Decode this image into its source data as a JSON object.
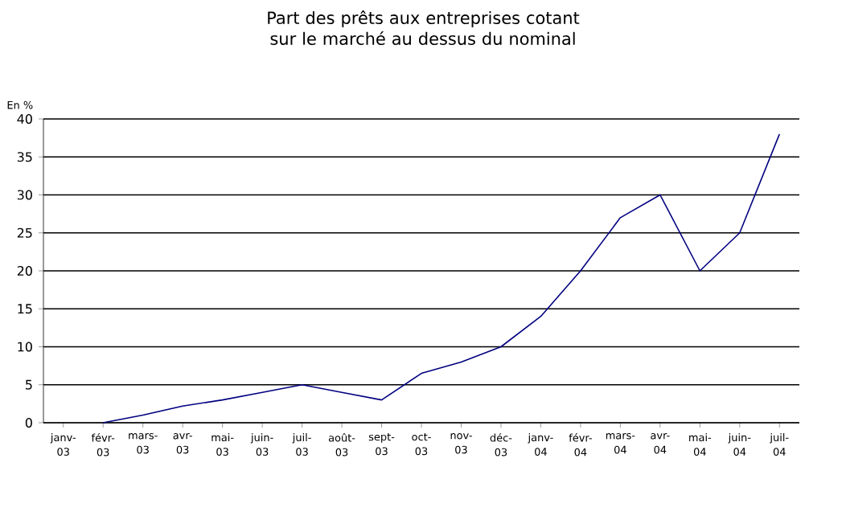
{
  "chart_data": {
    "type": "line",
    "title": "Part des prêts aux entreprises cotant sur le marché au dessus du nominal",
    "ylabel": "En %",
    "categories": [
      "janv-03",
      "févr-03",
      "mars-03",
      "avr-03",
      "mai-03",
      "juin-03",
      "juil-03",
      "août-03",
      "sept-03",
      "oct-03",
      "nov-03",
      "déc-03",
      "janv-04",
      "févr-04",
      "mars-04",
      "avr-04",
      "mai-04",
      "juin-04",
      "juil-04"
    ],
    "series": [
      {
        "color": "#000080",
        "values": [
          null,
          0,
          1,
          2.2,
          3,
          4,
          5,
          4,
          3,
          6.5,
          8,
          10,
          14,
          20,
          27,
          30,
          20,
          25,
          38
        ]
      }
    ],
    "ylim": [
      0,
      40
    ],
    "yticks": [
      0,
      5,
      10,
      15,
      20,
      25,
      30,
      35,
      40
    ],
    "grid": "y",
    "marker": "none",
    "line_style": "solid"
  }
}
